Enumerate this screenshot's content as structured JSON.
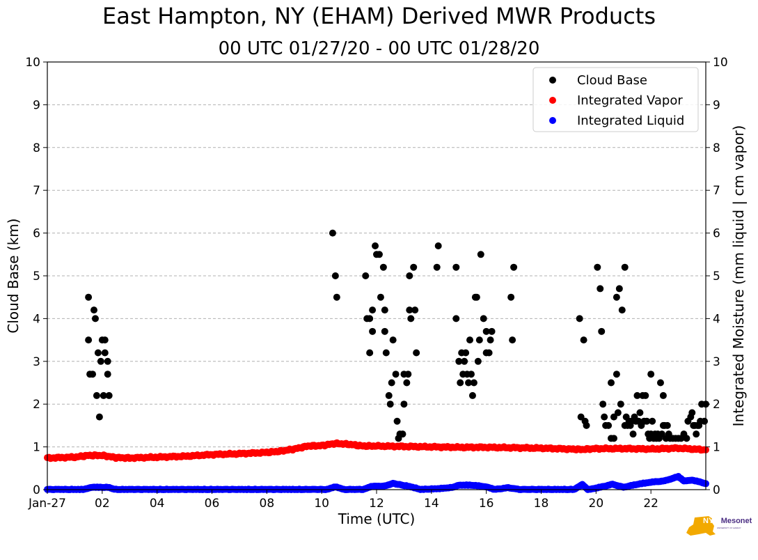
{
  "chart_data": {
    "type": "scatter",
    "title": "East Hampton, NY (EHAM) Derived MWR Products",
    "subtitle": "00 UTC 01/27/20 - 00 UTC 01/28/20",
    "xlabel": "Time (UTC)",
    "ylabel_left": "Cloud Base (km)",
    "ylabel_right": "Integrated Moisture (mm liquid | cm vapor)",
    "xlim": [
      0,
      24
    ],
    "ylim": [
      0,
      10
    ],
    "grid": "horizontal dashed",
    "legend_position": "top-right",
    "x_ticks": [
      {
        "value": 0,
        "label": "Jan-27"
      },
      {
        "value": 2,
        "label": "02"
      },
      {
        "value": 4,
        "label": "04"
      },
      {
        "value": 6,
        "label": "06"
      },
      {
        "value": 8,
        "label": "08"
      },
      {
        "value": 10,
        "label": "10"
      },
      {
        "value": 12,
        "label": "12"
      },
      {
        "value": 14,
        "label": "14"
      },
      {
        "value": 16,
        "label": "16"
      },
      {
        "value": 18,
        "label": "18"
      },
      {
        "value": 20,
        "label": "20"
      },
      {
        "value": 22,
        "label": "22"
      }
    ],
    "y_ticks": [
      {
        "value": 0,
        "label": "0"
      },
      {
        "value": 1,
        "label": "1"
      },
      {
        "value": 2,
        "label": "2"
      },
      {
        "value": 3,
        "label": "3"
      },
      {
        "value": 4,
        "label": "4"
      },
      {
        "value": 5,
        "label": "5"
      },
      {
        "value": 6,
        "label": "6"
      },
      {
        "value": 7,
        "label": "7"
      },
      {
        "value": 8,
        "label": "8"
      },
      {
        "value": 9,
        "label": "9"
      },
      {
        "value": 10,
        "label": "10"
      }
    ],
    "series": [
      {
        "name": "Cloud Base",
        "color": "#000000",
        "points": [
          [
            1.5,
            4.5
          ],
          [
            1.5,
            3.5
          ],
          [
            1.55,
            2.7
          ],
          [
            1.65,
            2.7
          ],
          [
            1.7,
            4.2
          ],
          [
            1.75,
            4.0
          ],
          [
            1.8,
            2.2
          ],
          [
            1.85,
            3.2
          ],
          [
            1.9,
            1.7
          ],
          [
            1.95,
            3.0
          ],
          [
            2.0,
            3.5
          ],
          [
            2.05,
            2.2
          ],
          [
            2.1,
            3.2
          ],
          [
            2.1,
            3.5
          ],
          [
            2.2,
            3.0
          ],
          [
            2.2,
            2.7
          ],
          [
            2.25,
            2.2
          ],
          [
            10.4,
            6.0
          ],
          [
            10.5,
            5.0
          ],
          [
            10.55,
            4.5
          ],
          [
            11.6,
            5.0
          ],
          [
            11.65,
            4.0
          ],
          [
            11.75,
            4.0
          ],
          [
            11.75,
            3.2
          ],
          [
            11.85,
            4.2
          ],
          [
            11.85,
            3.7
          ],
          [
            11.95,
            5.7
          ],
          [
            12.0,
            5.5
          ],
          [
            12.1,
            5.5
          ],
          [
            12.15,
            4.5
          ],
          [
            12.25,
            5.2
          ],
          [
            12.3,
            4.2
          ],
          [
            12.3,
            3.7
          ],
          [
            12.35,
            3.2
          ],
          [
            12.45,
            2.2
          ],
          [
            12.5,
            2.0
          ],
          [
            12.55,
            2.5
          ],
          [
            12.6,
            3.5
          ],
          [
            12.7,
            2.7
          ],
          [
            12.75,
            1.6
          ],
          [
            12.8,
            1.2
          ],
          [
            12.85,
            1.3
          ],
          [
            12.95,
            1.3
          ],
          [
            13.0,
            2.0
          ],
          [
            13.0,
            2.7
          ],
          [
            13.1,
            2.5
          ],
          [
            13.15,
            2.7
          ],
          [
            13.2,
            4.2
          ],
          [
            13.2,
            5.0
          ],
          [
            13.25,
            4.0
          ],
          [
            13.35,
            5.2
          ],
          [
            13.4,
            4.2
          ],
          [
            13.45,
            3.2
          ],
          [
            14.2,
            5.2
          ],
          [
            14.25,
            5.7
          ],
          [
            14.9,
            5.2
          ],
          [
            14.9,
            4.0
          ],
          [
            15.0,
            3.0
          ],
          [
            15.05,
            2.5
          ],
          [
            15.1,
            3.2
          ],
          [
            15.15,
            2.7
          ],
          [
            15.2,
            3.0
          ],
          [
            15.25,
            3.2
          ],
          [
            15.3,
            2.7
          ],
          [
            15.35,
            2.5
          ],
          [
            15.4,
            3.5
          ],
          [
            15.45,
            2.7
          ],
          [
            15.5,
            2.2
          ],
          [
            15.55,
            2.5
          ],
          [
            15.6,
            4.5
          ],
          [
            15.65,
            4.5
          ],
          [
            15.7,
            3.0
          ],
          [
            15.75,
            3.5
          ],
          [
            15.8,
            5.5
          ],
          [
            15.9,
            4.0
          ],
          [
            16.0,
            3.2
          ],
          [
            16.0,
            3.7
          ],
          [
            16.1,
            3.2
          ],
          [
            16.15,
            3.5
          ],
          [
            16.2,
            3.7
          ],
          [
            16.9,
            4.5
          ],
          [
            16.95,
            3.5
          ],
          [
            17.0,
            5.2
          ],
          [
            19.4,
            4.0
          ],
          [
            19.45,
            1.7
          ],
          [
            19.55,
            3.5
          ],
          [
            19.6,
            1.6
          ],
          [
            19.65,
            1.5
          ],
          [
            20.05,
            5.2
          ],
          [
            20.15,
            4.7
          ],
          [
            20.2,
            3.7
          ],
          [
            20.25,
            2.0
          ],
          [
            20.3,
            1.7
          ],
          [
            20.35,
            1.5
          ],
          [
            20.45,
            1.5
          ],
          [
            20.55,
            1.2
          ],
          [
            20.55,
            2.5
          ],
          [
            20.65,
            1.7
          ],
          [
            20.65,
            1.2
          ],
          [
            20.75,
            4.5
          ],
          [
            20.75,
            2.7
          ],
          [
            20.8,
            1.8
          ],
          [
            20.85,
            4.7
          ],
          [
            20.9,
            2.0
          ],
          [
            20.95,
            4.2
          ],
          [
            21.05,
            5.2
          ],
          [
            21.05,
            1.5
          ],
          [
            21.1,
            1.7
          ],
          [
            21.15,
            1.5
          ],
          [
            21.2,
            1.6
          ],
          [
            21.25,
            1.5
          ],
          [
            21.3,
            1.6
          ],
          [
            21.35,
            1.3
          ],
          [
            21.4,
            1.7
          ],
          [
            21.45,
            1.6
          ],
          [
            21.5,
            2.2
          ],
          [
            21.55,
            1.6
          ],
          [
            21.6,
            1.8
          ],
          [
            21.65,
            1.5
          ],
          [
            21.7,
            2.2
          ],
          [
            21.75,
            1.6
          ],
          [
            21.8,
            2.2
          ],
          [
            21.85,
            1.6
          ],
          [
            21.9,
            1.3
          ],
          [
            21.95,
            1.2
          ],
          [
            22.0,
            1.3
          ],
          [
            22.0,
            2.7
          ],
          [
            22.05,
            1.6
          ],
          [
            22.1,
            1.2
          ],
          [
            22.15,
            1.3
          ],
          [
            22.2,
            1.2
          ],
          [
            22.25,
            1.3
          ],
          [
            22.3,
            1.2
          ],
          [
            22.35,
            2.5
          ],
          [
            22.4,
            1.3
          ],
          [
            22.45,
            2.2
          ],
          [
            22.45,
            1.5
          ],
          [
            22.5,
            1.5
          ],
          [
            22.55,
            1.2
          ],
          [
            22.6,
            1.5
          ],
          [
            22.65,
            1.3
          ],
          [
            22.7,
            1.2
          ],
          [
            22.8,
            1.2
          ],
          [
            22.9,
            1.2
          ],
          [
            23.0,
            1.2
          ],
          [
            23.1,
            1.2
          ],
          [
            23.2,
            1.3
          ],
          [
            23.3,
            1.2
          ],
          [
            23.35,
            1.6
          ],
          [
            23.45,
            1.7
          ],
          [
            23.5,
            1.8
          ],
          [
            23.55,
            1.5
          ],
          [
            23.6,
            1.5
          ],
          [
            23.65,
            1.3
          ],
          [
            23.7,
            1.5
          ],
          [
            23.75,
            1.5
          ],
          [
            23.8,
            1.6
          ],
          [
            23.85,
            2.0
          ],
          [
            23.95,
            1.6
          ],
          [
            24.0,
            2.0
          ]
        ]
      },
      {
        "name": "Integrated Vapor",
        "color": "#ff0000",
        "points": [
          [
            0,
            0.74
          ],
          [
            1,
            0.76
          ],
          [
            1.5,
            0.8
          ],
          [
            2,
            0.8
          ],
          [
            2.5,
            0.75
          ],
          [
            3,
            0.74
          ],
          [
            4,
            0.76
          ],
          [
            5,
            0.78
          ],
          [
            6,
            0.82
          ],
          [
            7,
            0.84
          ],
          [
            8,
            0.87
          ],
          [
            8.5,
            0.9
          ],
          [
            9,
            0.95
          ],
          [
            9.5,
            1.02
          ],
          [
            10,
            1.03
          ],
          [
            10.5,
            1.08
          ],
          [
            11,
            1.06
          ],
          [
            11.5,
            1.02
          ],
          [
            12,
            1.02
          ],
          [
            13,
            1.01
          ],
          [
            14,
            1.0
          ],
          [
            15,
            0.99
          ],
          [
            16,
            0.99
          ],
          [
            17,
            0.98
          ],
          [
            18,
            0.97
          ],
          [
            19,
            0.95
          ],
          [
            19.5,
            0.94
          ],
          [
            20,
            0.96
          ],
          [
            21,
            0.96
          ],
          [
            22,
            0.95
          ],
          [
            23,
            0.97
          ],
          [
            24,
            0.93
          ]
        ]
      },
      {
        "name": "Integrated Liquid",
        "color": "#0000ff",
        "points": [
          [
            0,
            0.0
          ],
          [
            1.3,
            0.0
          ],
          [
            1.6,
            0.05
          ],
          [
            2.2,
            0.05
          ],
          [
            2.5,
            0.0
          ],
          [
            10.2,
            0.0
          ],
          [
            10.5,
            0.06
          ],
          [
            10.8,
            0.0
          ],
          [
            11.5,
            0.0
          ],
          [
            11.8,
            0.07
          ],
          [
            12.3,
            0.08
          ],
          [
            12.6,
            0.14
          ],
          [
            13.2,
            0.07
          ],
          [
            13.6,
            0.0
          ],
          [
            14.3,
            0.02
          ],
          [
            14.8,
            0.05
          ],
          [
            15.0,
            0.1
          ],
          [
            15.5,
            0.1
          ],
          [
            16.0,
            0.06
          ],
          [
            16.3,
            0.0
          ],
          [
            16.8,
            0.04
          ],
          [
            17.2,
            0.0
          ],
          [
            19.2,
            0.0
          ],
          [
            19.5,
            0.12
          ],
          [
            19.7,
            0.0
          ],
          [
            20.0,
            0.03
          ],
          [
            20.6,
            0.12
          ],
          [
            21.0,
            0.05
          ],
          [
            21.5,
            0.12
          ],
          [
            22.0,
            0.17
          ],
          [
            22.5,
            0.2
          ],
          [
            23.0,
            0.3
          ],
          [
            23.2,
            0.2
          ],
          [
            23.5,
            0.22
          ],
          [
            24.0,
            0.14
          ]
        ]
      }
    ]
  },
  "logo": {
    "text": "NYS Mesonet",
    "subtext": "UNIVERSITY AT ALBANY"
  }
}
